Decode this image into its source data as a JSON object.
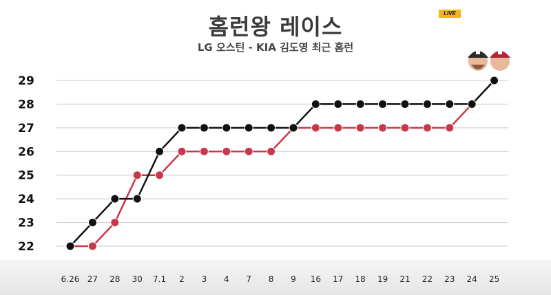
{
  "badge": "LIVE",
  "chart_data": {
    "type": "line",
    "title": "홈런왕 레이스",
    "subtitle": "LG 오스틴 - KIA 김도영 최근 홈런",
    "categories": [
      "6.26",
      "27",
      "28",
      "30",
      "7.1",
      "2",
      "3",
      "4",
      "7",
      "8",
      "9",
      "16",
      "17",
      "18",
      "19",
      "21",
      "22",
      "23",
      "24",
      "25"
    ],
    "ylim": [
      22,
      29
    ],
    "yticks": [
      22,
      23,
      24,
      25,
      26,
      27,
      28,
      29
    ],
    "grid": true,
    "series": [
      {
        "color": "#111111",
        "values": [
          22,
          23,
          24,
          24,
          26,
          27,
          27,
          27,
          27,
          27,
          27,
          28,
          28,
          28,
          28,
          28,
          28,
          28,
          28,
          29
        ],
        "step": true
      },
      {
        "color": "#c8374a",
        "values": [
          22,
          22,
          23,
          25,
          25,
          26,
          26,
          26,
          26,
          26,
          27,
          27,
          27,
          27,
          27,
          27,
          27,
          27,
          28,
          29
        ],
        "step": false
      }
    ],
    "player_icons": [
      "player-portrait-austin-icon",
      "player-portrait-kim-doyoung-icon"
    ]
  }
}
